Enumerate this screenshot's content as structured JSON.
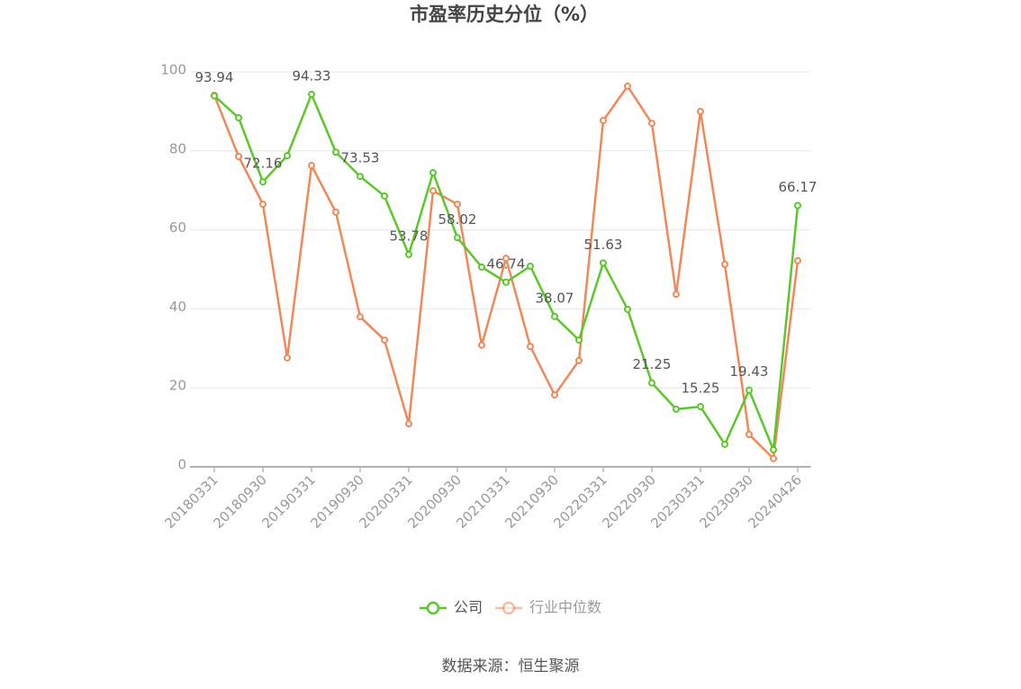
{
  "chart_data": {
    "type": "line",
    "title": "市盈率历史分位（%）",
    "source": "数据来源：恒生聚源",
    "categories": [
      "20180331",
      null,
      "20180930",
      null,
      "20190331",
      null,
      "20190930",
      null,
      "20200331",
      null,
      "20200930",
      null,
      "20210331",
      null,
      "20210930",
      null,
      "20220331",
      null,
      "20220930",
      null,
      "20230331",
      null,
      "20230930",
      null,
      "20240426"
    ],
    "ylim": [
      0,
      100
    ],
    "yticks": [
      0,
      20,
      40,
      60,
      80,
      100
    ],
    "grid": true,
    "legend": "bottom",
    "series": [
      {
        "name": "公司",
        "color": "#5cc72d",
        "values": [
          93.94,
          88.4,
          72.16,
          78.8,
          94.33,
          79.7,
          73.53,
          68.6,
          53.78,
          74.5,
          58.02,
          50.6,
          46.74,
          50.8,
          38.07,
          32.1,
          51.63,
          39.9,
          21.25,
          14.6,
          15.25,
          5.7,
          19.43,
          4.3,
          66.17
        ],
        "value_labels": [
          "93.94",
          null,
          "72.16",
          null,
          "94.33",
          null,
          "73.53",
          null,
          "53.78",
          null,
          "58.02",
          null,
          "46.74",
          null,
          "38.07",
          null,
          "51.63",
          null,
          "21.25",
          null,
          "15.25",
          null,
          "19.43",
          null,
          "66.17"
        ]
      },
      {
        "name": "行业中位数",
        "color": "#f0895a",
        "values": [
          94.1,
          78.6,
          66.5,
          27.6,
          76.3,
          64.5,
          38.0,
          32.1,
          10.9,
          69.9,
          66.5,
          30.8,
          52.8,
          30.5,
          18.2,
          26.9,
          87.7,
          96.4,
          87.0,
          43.7,
          90.0,
          51.3,
          8.2,
          2.1,
          52.2
        ]
      }
    ]
  }
}
